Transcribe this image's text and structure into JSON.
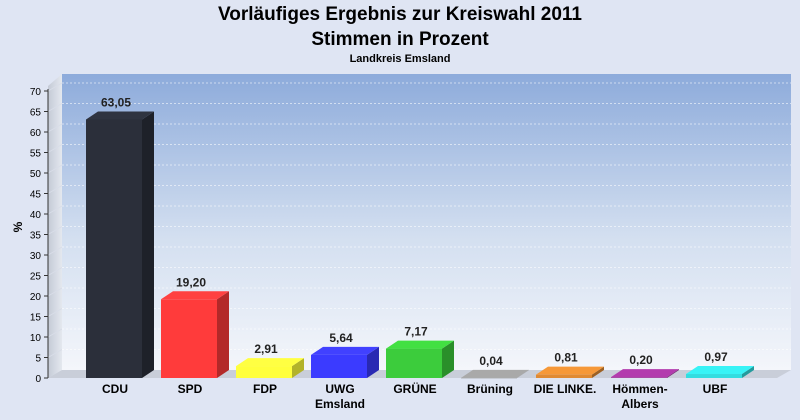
{
  "chart_data": {
    "type": "bar",
    "title": "Vorläufiges Ergebnis zur Kreiswahl 2011",
    "subtitle": "Stimmen in Prozent",
    "caption": "Landkreis Emsland",
    "ylabel": "%",
    "xlabel": "",
    "ylim": [
      0,
      70
    ],
    "yticks": [
      0,
      5,
      10,
      15,
      20,
      25,
      30,
      35,
      40,
      45,
      50,
      55,
      60,
      65,
      70
    ],
    "grid": true,
    "categories": [
      "CDU",
      "SPD",
      "FDP",
      "UWG Emsland",
      "GRÜNE",
      "Brüning",
      "DIE LINKE.",
      "Hömmen- Albers",
      "UBF"
    ],
    "category_lines": [
      [
        "CDU"
      ],
      [
        "SPD"
      ],
      [
        "FDP"
      ],
      [
        "UWG",
        "Emsland"
      ],
      [
        "GRÜNE"
      ],
      [
        "Brüning"
      ],
      [
        "DIE LINKE."
      ],
      [
        "Hömmen-",
        "Albers"
      ],
      [
        "UBF"
      ]
    ],
    "values": [
      63.05,
      19.2,
      2.91,
      5.64,
      7.17,
      0.04,
      0.81,
      0.2,
      0.97
    ],
    "value_labels": [
      "63,05",
      "19,20",
      "2,91",
      "5,64",
      "7,17",
      "0,04",
      "0,81",
      "0,20",
      "0,97"
    ],
    "colors": [
      "#2b2f3a",
      "#ff3b3b",
      "#ffff3c",
      "#3b3bff",
      "#3ccc3c",
      "#9a9a9a",
      "#e08a33",
      "#a3369e",
      "#33dde0"
    ]
  }
}
